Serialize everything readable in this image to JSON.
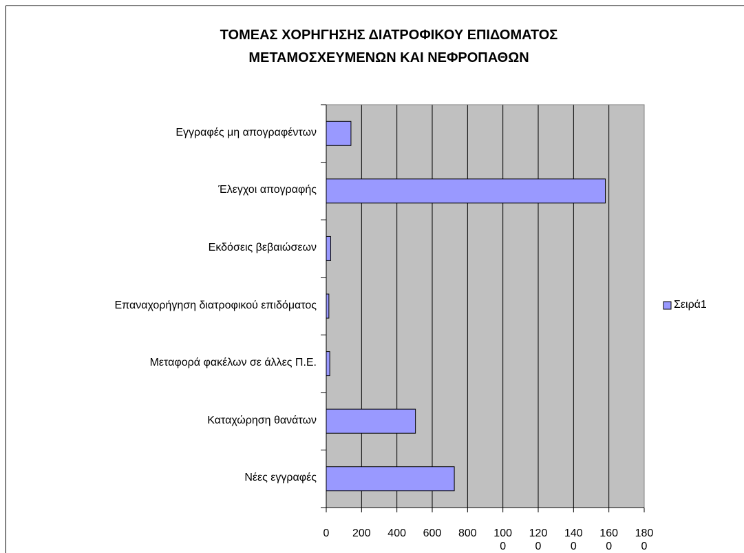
{
  "chart_data": {
    "type": "bar",
    "orientation": "horizontal",
    "title": "ΤΟΜΕΑΣ ΧΟΡΗΓΗΣΗΣ ΔΙΑΤΡΟΦΙΚΟΥ ΕΠΙΔΟΜΑΤΟΣ ΜΕΤΑΜΟΣΧΕΥΜΕΝΩΝ ΚΑΙ ΝΕΦΡΟΠΑΘΩΝ",
    "categories": [
      "Εγγραφές μη απογραφέντων",
      "Έλεγχοι απογραφής",
      "Εκδόσεις βεβαιώσεων",
      "Επαναχορήγηση διατροφικού επιδόματος",
      "Μεταφορά φακέλων σε άλλες Π.Ε.",
      "Καταχώρηση θανάτων",
      "Νέες εγγραφές"
    ],
    "series": [
      {
        "name": "Σειρά1",
        "color": "#9999ff",
        "values": [
          140,
          1580,
          25,
          15,
          20,
          505,
          725
        ]
      }
    ],
    "xlim": [
      0,
      1800
    ],
    "xticks": [
      0,
      200,
      400,
      600,
      800,
      1000,
      1200,
      1400,
      1600,
      1800
    ],
    "grid": true,
    "legend": "right"
  }
}
